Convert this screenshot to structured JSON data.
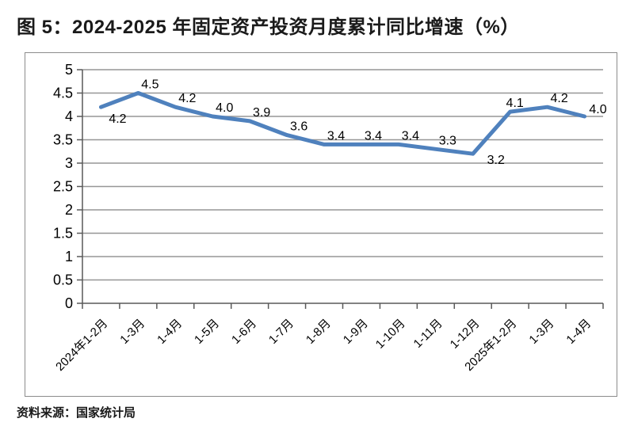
{
  "title": "图 5：2024-2025 年固定资产投资月度累计同比增速（%）",
  "source": "资料来源：国家统计局",
  "chart_data": {
    "type": "line",
    "title": "图 5：2024-2025 年固定资产投资月度累计同比增速（%）",
    "categories": [
      "2024年1-2月",
      "1-3月",
      "1-4月",
      "1-5月",
      "1-6月",
      "1-7月",
      "1-8月",
      "1-9月",
      "1-10月",
      "1-11月",
      "1-12月",
      "2025年1-2月",
      "1-3月",
      "1-4月"
    ],
    "values": [
      4.2,
      4.5,
      4.2,
      4.0,
      3.9,
      3.6,
      3.4,
      3.4,
      3.4,
      3.3,
      3.2,
      4.1,
      4.2,
      4.0
    ],
    "point_labels": [
      "4.2",
      "4.5",
      "4.2",
      "4.0",
      "3.9",
      "3.6",
      "3.4",
      "3.4",
      "3.4",
      "3.3",
      "3.2",
      "4.1",
      "4.2",
      "4.0"
    ],
    "yticks": [
      "5",
      "4.5",
      "4",
      "3.5",
      "3",
      "2.5",
      "2",
      "1.5",
      "1",
      "0.5",
      "0"
    ],
    "ylim": [
      0,
      5
    ],
    "ytick_step": 0.5,
    "xlabel": "",
    "ylabel": "",
    "grid": true,
    "legend": "none",
    "colors": {
      "line": "#4F81BD",
      "gridline": "#969696",
      "axis": "#595959",
      "frame_border": "#8C8C8C",
      "text": "#000000"
    }
  }
}
